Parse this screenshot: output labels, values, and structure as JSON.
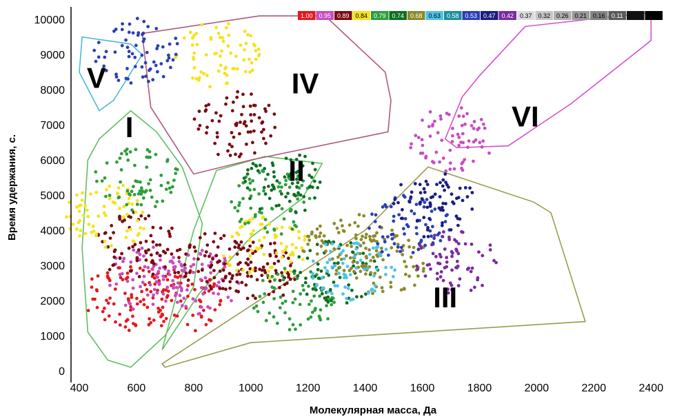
{
  "chart_data": {
    "type": "scatter",
    "xlabel": "Молекулярная масса, Да",
    "ylabel": "Время удержания, с.",
    "xlim": [
      400,
      2450
    ],
    "ylim": [
      0,
      10200
    ],
    "x_ticks": [
      "400",
      "600",
      "800",
      "1000",
      "1200",
      "1400",
      "1600",
      "1800",
      "2000",
      "2200",
      "2400"
    ],
    "y_ticks": [
      "0",
      "1000",
      "2000",
      "3000",
      "4000",
      "5000",
      "6000",
      "7000",
      "8000",
      "9000",
      "10000"
    ],
    "grid": false,
    "legend_position": "top-right",
    "legend": [
      {
        "label": "1.00",
        "color": "#e3191c"
      },
      {
        "label": "0.95",
        "color": "#c74dbf"
      },
      {
        "label": "0.89",
        "color": "#7a0a12"
      },
      {
        "label": "0.84",
        "color": "#f4e31b"
      },
      {
        "label": "0.79",
        "color": "#2e9e3c"
      },
      {
        "label": "0.74",
        "color": "#0f6e22"
      },
      {
        "label": "0.68",
        "color": "#8c8a2a"
      },
      {
        "label": "0.63",
        "color": "#4fc3e8"
      },
      {
        "label": "0.58",
        "color": "#1e8f9c"
      },
      {
        "label": "0.53",
        "color": "#2a3fb5"
      },
      {
        "label": "0.47",
        "color": "#1a1e80"
      },
      {
        "label": "0.42",
        "color": "#7b2a9e"
      },
      {
        "label": "0.37",
        "color": "#dcdcdc"
      },
      {
        "label": "0.32",
        "color": "#c6c6c6"
      },
      {
        "label": "0.26",
        "color": "#b0b0b0"
      },
      {
        "label": "0.21",
        "color": "#9a9a9a"
      },
      {
        "label": "0.16",
        "color": "#848484"
      },
      {
        "label": "0.11",
        "color": "#5a5a5a"
      },
      {
        "label": "",
        "color": "#111111"
      },
      {
        "label": "",
        "color": "#000000"
      }
    ],
    "regions": [
      {
        "label": "I",
        "color": "#5fbf5f",
        "label_at": [
          575,
          6650
        ],
        "polygon": [
          [
            430,
            6000
          ],
          [
            470,
            6600
          ],
          [
            580,
            7400
          ],
          [
            670,
            6800
          ],
          [
            760,
            5800
          ],
          [
            830,
            4200
          ],
          [
            800,
            2400
          ],
          [
            700,
            1000
          ],
          [
            580,
            100
          ],
          [
            500,
            300
          ],
          [
            430,
            1100
          ],
          [
            410,
            3500
          ]
        ]
      },
      {
        "label": "II",
        "color": "#5fbf5f",
        "label_at": [
          1160,
          5400
        ],
        "polygon": [
          [
            690,
            600
          ],
          [
            820,
            2200
          ],
          [
            1000,
            3800
          ],
          [
            1180,
            4900
          ],
          [
            1250,
            5900
          ],
          [
            1050,
            6100
          ],
          [
            880,
            5700
          ],
          [
            800,
            4000
          ]
        ]
      },
      {
        "label": "III",
        "color": "#9b9b4f",
        "label_at": [
          1680,
          1800
        ],
        "polygon": [
          [
            700,
            100
          ],
          [
            1000,
            800
          ],
          [
            2170,
            1400
          ],
          [
            2050,
            4500
          ],
          [
            1990,
            4800
          ],
          [
            1620,
            5800
          ],
          [
            1400,
            4000
          ],
          [
            1010,
            1900
          ],
          [
            690,
            200
          ]
        ]
      },
      {
        "label": "IV",
        "color": "#b05878",
        "label_at": [
          1190,
          7900
        ],
        "polygon": [
          [
            620,
            9600
          ],
          [
            1030,
            10100
          ],
          [
            1260,
            10100
          ],
          [
            1470,
            8500
          ],
          [
            1490,
            7700
          ],
          [
            1480,
            6800
          ],
          [
            1000,
            6000
          ],
          [
            800,
            5600
          ],
          [
            650,
            7500
          ]
        ]
      },
      {
        "label": "V",
        "color": "#4bb8d8",
        "label_at": [
          460,
          8050
        ],
        "polygon": [
          [
            410,
            9500
          ],
          [
            580,
            9300
          ],
          [
            620,
            9000
          ],
          [
            520,
            7700
          ],
          [
            470,
            7400
          ],
          [
            400,
            8500
          ]
        ]
      },
      {
        "label": "VI",
        "color": "#d54fd0",
        "label_at": [
          1960,
          6950
        ],
        "polygon": [
          [
            1680,
            6600
          ],
          [
            1740,
            7800
          ],
          [
            1800,
            8400
          ],
          [
            1960,
            9800
          ],
          [
            2400,
            10200
          ],
          [
            2400,
            9400
          ],
          [
            2120,
            7600
          ],
          [
            1900,
            6400
          ],
          [
            1720,
            6350
          ]
        ]
      }
    ],
    "cluster_dots": [
      {
        "x": 750,
        "y": 2000,
        "color": "#e3191c"
      },
      {
        "x": 560,
        "y": 2050,
        "color": "#e3191c"
      },
      {
        "x": 640,
        "y": 2600,
        "color": "#c74dbf"
      },
      {
        "x": 820,
        "y": 2500,
        "color": "#c74dbf"
      },
      {
        "x": 880,
        "y": 3000,
        "color": "#7a0a12"
      },
      {
        "x": 600,
        "y": 3600,
        "color": "#7a0a12"
      },
      {
        "x": 1020,
        "y": 2800,
        "color": "#7a0a12"
      },
      {
        "x": 1050,
        "y": 3500,
        "color": "#f4e31b"
      },
      {
        "x": 500,
        "y": 4400,
        "color": "#f4e31b"
      },
      {
        "x": 880,
        "y": 9000,
        "color": "#f4e31b"
      },
      {
        "x": 600,
        "y": 5500,
        "color": "#2e9e3c"
      },
      {
        "x": 1080,
        "y": 4800,
        "color": "#2e9e3c"
      },
      {
        "x": 1150,
        "y": 2000,
        "color": "#2e9e3c"
      },
      {
        "x": 1300,
        "y": 2800,
        "color": "#0f6e22"
      },
      {
        "x": 1120,
        "y": 5300,
        "color": "#0f6e22"
      },
      {
        "x": 1330,
        "y": 3600,
        "color": "#8c8a2a"
      },
      {
        "x": 1470,
        "y": 3100,
        "color": "#8c8a2a"
      },
      {
        "x": 1360,
        "y": 2900,
        "color": "#4fc3e8"
      },
      {
        "x": 1550,
        "y": 4100,
        "color": "#2a3fb5"
      },
      {
        "x": 1640,
        "y": 4700,
        "color": "#1a1e80"
      },
      {
        "x": 600,
        "y": 9100,
        "color": "#2a3fb5"
      },
      {
        "x": 1720,
        "y": 3100,
        "color": "#7b2a9e"
      },
      {
        "x": 1700,
        "y": 6600,
        "color": "#c74dbf"
      },
      {
        "x": 950,
        "y": 7000,
        "color": "#7a0a12"
      }
    ]
  }
}
